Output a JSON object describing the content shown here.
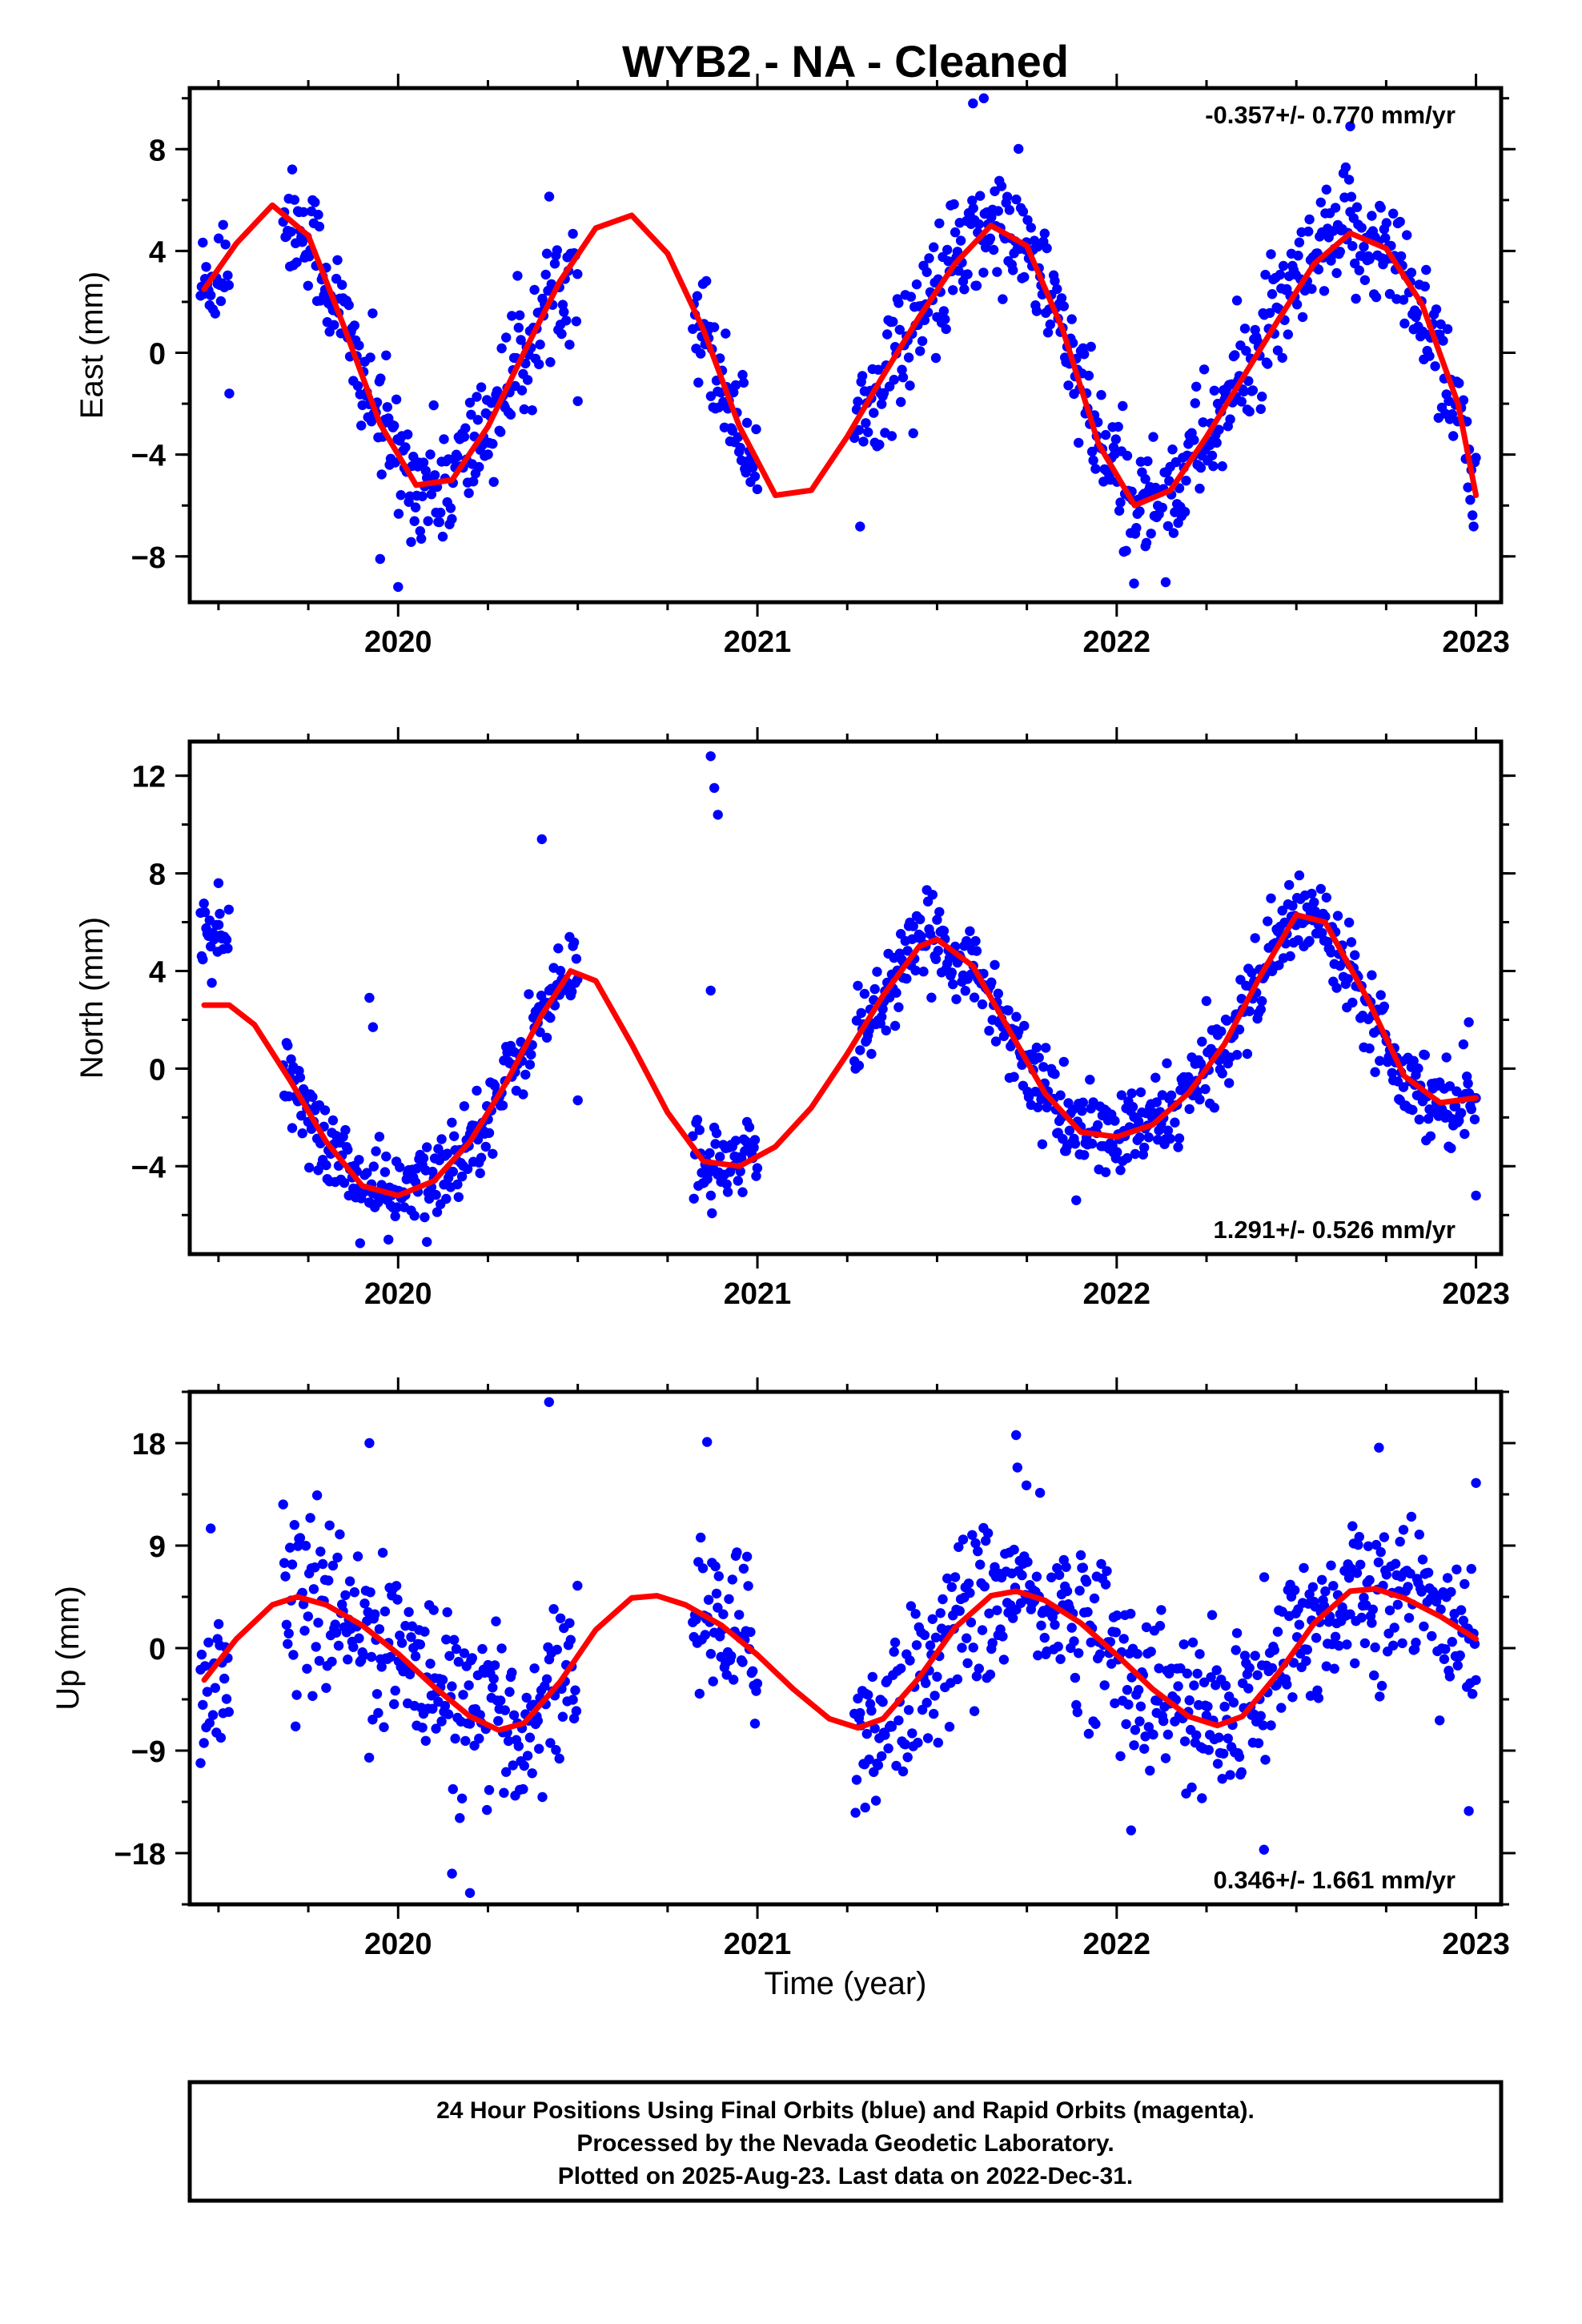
{
  "chart_data": {
    "type": "scatter",
    "title": "WYB2  - NA - Cleaned",
    "xlabel": "Time (year)",
    "xlim": [
      2019.42,
      2023.07
    ],
    "x_ticks": [
      "2020",
      "2021",
      "2022",
      "2023"
    ],
    "colors": {
      "points": "#0000ff",
      "model": "#ff0000",
      "frame": "#000000"
    },
    "model": {
      "annual_period_years": 1.0,
      "note_phase_ref": "semi-annual + annual sinusoid with trend"
    },
    "panels": [
      {
        "name": "East",
        "ylabel": "East (mm)",
        "ylim": [
          -9.8,
          10.4
        ],
        "y_ticks": [
          "8",
          "4",
          "0",
          "−4",
          "−8"
        ],
        "y_tick_values": [
          8,
          4,
          0,
          -4,
          -8
        ],
        "rate_label": "-0.357+/- 0.770 mm/yr",
        "rate_pos": "top-right",
        "scatter_spread": 1.4,
        "curve": [
          [
            2019.46,
            2.5
          ],
          [
            2019.55,
            4.3
          ],
          [
            2019.65,
            5.8
          ],
          [
            2019.75,
            4.6
          ],
          [
            2019.85,
            1.0
          ],
          [
            2019.95,
            -2.8
          ],
          [
            2020.05,
            -5.2
          ],
          [
            2020.15,
            -5.0
          ],
          [
            2020.25,
            -2.9
          ],
          [
            2020.35,
            0.0
          ],
          [
            2020.45,
            2.8
          ],
          [
            2020.55,
            4.9
          ],
          [
            2020.65,
            5.4
          ],
          [
            2020.75,
            3.9
          ],
          [
            2020.85,
            0.9
          ],
          [
            2020.95,
            -2.9
          ],
          [
            2021.05,
            -5.6
          ],
          [
            2021.15,
            -5.4
          ],
          [
            2021.25,
            -3.3
          ],
          [
            2021.35,
            -0.9
          ],
          [
            2021.45,
            1.4
          ],
          [
            2021.55,
            3.5
          ],
          [
            2021.65,
            5.0
          ],
          [
            2021.75,
            4.2
          ],
          [
            2021.85,
            0.9
          ],
          [
            2021.95,
            -3.6
          ],
          [
            2022.05,
            -6.0
          ],
          [
            2022.15,
            -5.4
          ],
          [
            2022.25,
            -3.3
          ],
          [
            2022.35,
            -1.0
          ],
          [
            2022.45,
            1.3
          ],
          [
            2022.55,
            3.5
          ],
          [
            2022.65,
            4.7
          ],
          [
            2022.75,
            4.1
          ],
          [
            2022.85,
            1.9
          ],
          [
            2022.95,
            -2.0
          ],
          [
            2023.0,
            -5.6
          ]
        ],
        "data_segments": [
          [
            2019.45,
            2019.53
          ],
          [
            2019.68,
            2020.5
          ],
          [
            2020.82,
            2021.0
          ],
          [
            2021.27,
            2023.0
          ]
        ],
        "extra_points": [
          [
            2019.53,
            -1.6
          ],
          [
            2019.95,
            -8.1
          ],
          [
            2020.0,
            -9.2
          ],
          [
            2020.5,
            -1.9
          ],
          [
            2021.6,
            9.8
          ],
          [
            2021.63,
            10.0
          ],
          [
            2022.08,
            -7.6
          ],
          [
            2022.65,
            8.9
          ]
        ]
      },
      {
        "name": "North",
        "ylabel": "North (mm)",
        "ylim": [
          -7.6,
          13.4
        ],
        "y_ticks": [
          "12",
          "8",
          "4",
          "0",
          "−4"
        ],
        "y_tick_values": [
          12,
          8,
          4,
          0,
          -4
        ],
        "rate_label": "1.291+/- 0.526 mm/yr",
        "rate_pos": "bottom-right",
        "scatter_spread": 1.0,
        "curve": [
          [
            2019.46,
            2.6
          ],
          [
            2019.53,
            2.6
          ],
          [
            2019.6,
            1.8
          ],
          [
            2019.7,
            -0.5
          ],
          [
            2019.8,
            -3.0
          ],
          [
            2019.9,
            -4.8
          ],
          [
            2020.0,
            -5.2
          ],
          [
            2020.1,
            -4.6
          ],
          [
            2020.2,
            -3.0
          ],
          [
            2020.3,
            -0.6
          ],
          [
            2020.4,
            2.2
          ],
          [
            2020.48,
            4.0
          ],
          [
            2020.55,
            3.6
          ],
          [
            2020.65,
            1.0
          ],
          [
            2020.75,
            -1.8
          ],
          [
            2020.85,
            -3.8
          ],
          [
            2020.95,
            -4.0
          ],
          [
            2021.05,
            -3.2
          ],
          [
            2021.15,
            -1.6
          ],
          [
            2021.25,
            0.6
          ],
          [
            2021.35,
            3.0
          ],
          [
            2021.45,
            5.0
          ],
          [
            2021.5,
            5.3
          ],
          [
            2021.6,
            4.2
          ],
          [
            2021.7,
            1.6
          ],
          [
            2021.8,
            -1.0
          ],
          [
            2021.9,
            -2.6
          ],
          [
            2022.0,
            -2.8
          ],
          [
            2022.1,
            -2.3
          ],
          [
            2022.2,
            -1.0
          ],
          [
            2022.3,
            1.0
          ],
          [
            2022.4,
            3.8
          ],
          [
            2022.5,
            6.3
          ],
          [
            2022.58,
            6.0
          ],
          [
            2022.7,
            2.8
          ],
          [
            2022.8,
            -0.3
          ],
          [
            2022.9,
            -1.4
          ],
          [
            2023.0,
            -1.2
          ]
        ],
        "data_segments": [
          [
            2019.45,
            2019.53
          ],
          [
            2019.68,
            2020.5
          ],
          [
            2020.82,
            2021.0
          ],
          [
            2021.27,
            2023.0
          ]
        ],
        "curve_offset_segments": [
          [
            2019.45,
            2019.53,
            2.5
          ]
        ],
        "extra_points": [
          [
            2019.5,
            7.6
          ],
          [
            2020.4,
            9.4
          ],
          [
            2020.5,
            -1.3
          ],
          [
            2020.87,
            12.8
          ],
          [
            2020.88,
            11.5
          ],
          [
            2020.89,
            10.4
          ],
          [
            2020.87,
            3.2
          ],
          [
            2020.08,
            -7.1
          ],
          [
            2019.92,
            2.9
          ],
          [
            2019.93,
            1.7
          ],
          [
            2023.0,
            -5.2
          ],
          [
            2022.98,
            1.9
          ]
        ]
      },
      {
        "name": "Up",
        "ylabel": "Up (mm)",
        "ylim": [
          -22.5,
          22.5
        ],
        "y_ticks": [
          "18",
          "9",
          "0",
          "−9",
          "−18"
        ],
        "y_tick_values": [
          18,
          9,
          0,
          -9,
          -18
        ],
        "rate_label": "0.346+/- 1.661 mm/yr",
        "rate_pos": "bottom-right",
        "scatter_spread": 4.2,
        "curve": [
          [
            2019.46,
            -2.8
          ],
          [
            2019.55,
            0.8
          ],
          [
            2019.65,
            3.8
          ],
          [
            2019.72,
            4.5
          ],
          [
            2019.8,
            3.8
          ],
          [
            2019.9,
            2.0
          ],
          [
            2020.0,
            -0.5
          ],
          [
            2020.1,
            -3.4
          ],
          [
            2020.2,
            -6.0
          ],
          [
            2020.28,
            -7.2
          ],
          [
            2020.35,
            -6.6
          ],
          [
            2020.45,
            -3.0
          ],
          [
            2020.55,
            1.6
          ],
          [
            2020.65,
            4.4
          ],
          [
            2020.72,
            4.6
          ],
          [
            2020.8,
            3.8
          ],
          [
            2020.9,
            2.0
          ],
          [
            2021.0,
            -0.6
          ],
          [
            2021.1,
            -3.6
          ],
          [
            2021.2,
            -6.2
          ],
          [
            2021.28,
            -7.0
          ],
          [
            2021.35,
            -6.2
          ],
          [
            2021.45,
            -2.6
          ],
          [
            2021.55,
            1.8
          ],
          [
            2021.65,
            4.6
          ],
          [
            2021.72,
            5.0
          ],
          [
            2021.8,
            4.2
          ],
          [
            2021.9,
            2.2
          ],
          [
            2022.0,
            -0.6
          ],
          [
            2022.1,
            -3.6
          ],
          [
            2022.2,
            -6.0
          ],
          [
            2022.28,
            -6.8
          ],
          [
            2022.35,
            -6.0
          ],
          [
            2022.45,
            -2.2
          ],
          [
            2022.55,
            2.2
          ],
          [
            2022.65,
            5.0
          ],
          [
            2022.72,
            5.2
          ],
          [
            2022.8,
            4.4
          ],
          [
            2022.9,
            2.8
          ],
          [
            2023.0,
            0.8
          ]
        ],
        "data_segments": [
          [
            2019.45,
            2019.53
          ],
          [
            2019.68,
            2020.5
          ],
          [
            2020.82,
            2021.0
          ],
          [
            2021.27,
            2023.0
          ]
        ],
        "extra_points": [
          [
            2019.45,
            -10.1
          ],
          [
            2019.92,
            18.0
          ],
          [
            2020.42,
            21.6
          ],
          [
            2020.15,
            -19.8
          ],
          [
            2020.2,
            -21.5
          ],
          [
            2020.86,
            18.1
          ],
          [
            2021.3,
            -14.0
          ],
          [
            2021.72,
            18.7
          ],
          [
            2022.04,
            -16.0
          ],
          [
            2022.41,
            -17.7
          ],
          [
            2022.73,
            17.6
          ],
          [
            2022.98,
            -14.3
          ],
          [
            2023.0,
            14.5
          ]
        ]
      }
    ]
  },
  "footer": {
    "line1": "24 Hour Positions Using Final Orbits (blue) and Rapid Orbits (magenta).",
    "line2": "Processed by the Nevada Geodetic Laboratory.",
    "line3": "Plotted on 2025-Aug-23. Last data on 2022-Dec-31."
  }
}
